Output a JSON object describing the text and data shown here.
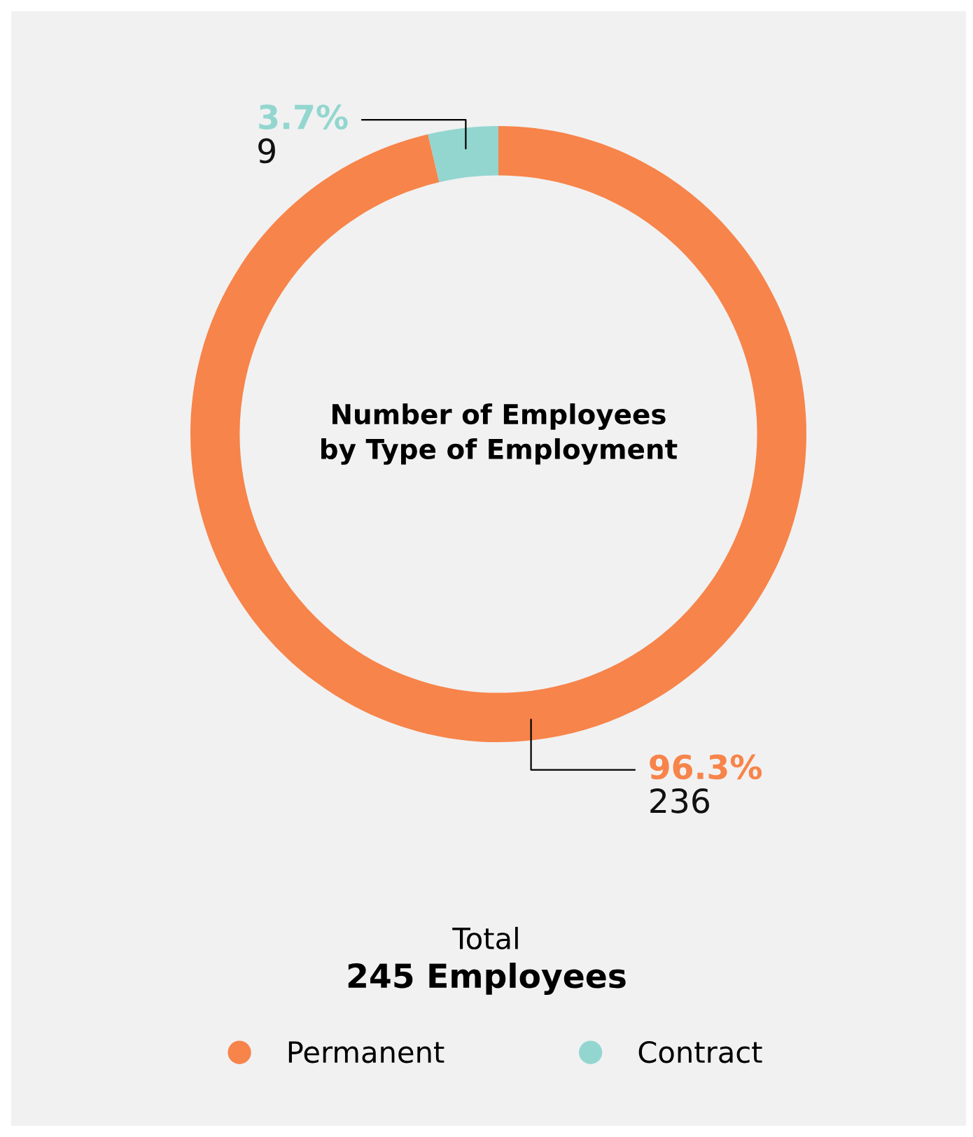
{
  "chart_data": {
    "type": "donut",
    "title": "Number of Employees\nby Type of Employment",
    "categories": [
      "Permanent",
      "Contract"
    ],
    "values": [
      236,
      9
    ],
    "colors": [
      "#f7844a",
      "#93d6d0"
    ],
    "value_labels": [
      "96.3%\n236",
      "3.7%\n9"
    ],
    "annotations": [
      "Total",
      "245 Employees"
    ],
    "legend": "bottom"
  }
}
